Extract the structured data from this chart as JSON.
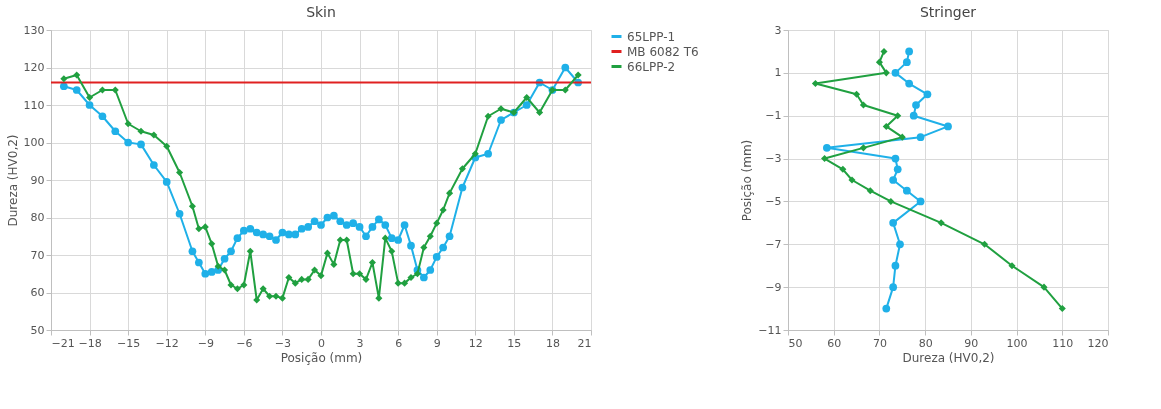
{
  "chart_data": [
    {
      "type": "line",
      "title": "Skin",
      "xlabel": "Posição (mm)",
      "ylabel": "Dureza (HV0,2)",
      "xlim": [
        -21,
        21
      ],
      "xticks": [
        -21,
        -18,
        -15,
        -12,
        -9,
        -6,
        -3,
        0,
        3,
        6,
        9,
        12,
        15,
        18,
        21
      ],
      "ylim": [
        50,
        130
      ],
      "yticks": [
        50,
        60,
        70,
        80,
        90,
        100,
        110,
        120,
        130
      ],
      "grid": true,
      "legend": "right",
      "line_style": "solid",
      "series": [
        {
          "name": "65LPP-1",
          "color": "#1fb0e8",
          "marker": "circle",
          "x": [
            -20,
            -19,
            -18,
            -17,
            -16,
            -15,
            -14,
            -13,
            -12,
            -11,
            -10,
            -9.5,
            -9,
            -8.5,
            -8,
            -7.5,
            -7,
            -6.5,
            -6,
            -5.5,
            -5,
            -4.5,
            -4,
            -3.5,
            -3,
            -2.5,
            -2,
            -1.5,
            -1,
            -0.5,
            0,
            0.5,
            1,
            1.5,
            2,
            2.5,
            3,
            3.5,
            4,
            4.5,
            5,
            5.5,
            6,
            6.5,
            7,
            7.5,
            8,
            8.5,
            9,
            9.5,
            10,
            11,
            12,
            13,
            14,
            15,
            16,
            17,
            18,
            19,
            20
          ],
          "values": [
            115,
            114,
            110,
            107,
            103,
            100,
            99.5,
            94,
            89.5,
            81,
            71,
            68,
            65,
            65.5,
            66,
            69,
            71,
            74.5,
            76.5,
            77,
            76,
            75.5,
            75,
            74,
            76,
            75.5,
            75.5,
            77,
            77.5,
            79,
            78,
            80,
            80.5,
            79,
            78,
            78.5,
            77.5,
            75,
            77.5,
            79.5,
            78,
            74.5,
            74,
            78,
            72.5,
            66,
            64,
            66,
            69.5,
            72,
            75,
            88,
            96,
            97,
            106,
            108,
            110,
            116,
            114,
            120,
            116
          ]
        },
        {
          "name": "MB 6082 T6",
          "color": "#e02020",
          "marker": "none",
          "x": [
            -21,
            21
          ],
          "values": [
            116,
            116
          ]
        },
        {
          "name": "66LPP-2",
          "color": "#20a040",
          "marker": "diamond",
          "x": [
            -20,
            -19,
            -18,
            -17,
            -16,
            -15,
            -14,
            -13,
            -12,
            -11,
            -10,
            -9.5,
            -9,
            -8.5,
            -8,
            -7.5,
            -7,
            -6.5,
            -6,
            -5.5,
            -5,
            -4.5,
            -4,
            -3.5,
            -3,
            -2.5,
            -2,
            -1.5,
            -1,
            -0.5,
            0,
            0.5,
            1,
            1.5,
            2,
            2.5,
            3,
            3.5,
            4,
            4.5,
            5,
            5.5,
            6,
            6.5,
            7,
            7.5,
            8,
            8.5,
            9,
            9.5,
            10,
            11,
            12,
            13,
            14,
            15,
            16,
            17,
            18,
            19,
            20
          ],
          "values": [
            117,
            118,
            112,
            114,
            114,
            105,
            103,
            102,
            99,
            92,
            83,
            77,
            77.5,
            73,
            67,
            66,
            62,
            61,
            62,
            71,
            58,
            61,
            59,
            59,
            58.5,
            64,
            62.5,
            63.5,
            63.5,
            66,
            64.5,
            70.5,
            67.5,
            74,
            74,
            65,
            65,
            63.5,
            68,
            58.5,
            74.5,
            71,
            62.5,
            62.5,
            64,
            65,
            72,
            75,
            78.5,
            82,
            86.5,
            93,
            97,
            107,
            109,
            108,
            112,
            108,
            114,
            114,
            118
          ]
        }
      ]
    },
    {
      "type": "line",
      "title": "Stringer",
      "xlabel": "Dureza (HV0,2)",
      "ylabel": "Posição (mm)",
      "xlim": [
        50,
        120
      ],
      "xticks": [
        50,
        60,
        70,
        80,
        90,
        100,
        110,
        120
      ],
      "ylim": [
        -11,
        3
      ],
      "yticks": [
        -11,
        -9,
        -7,
        -5,
        -3,
        -1,
        1,
        3
      ],
      "grid": true,
      "line_style": "solid",
      "series": [
        {
          "color": "#1fb0e8",
          "marker": "circle",
          "x": [
            76.5,
            76,
            73.5,
            76.5,
            80.5,
            78,
            77.5,
            85,
            79,
            58.5,
            73.5,
            74,
            73,
            76,
            79,
            73,
            74.5,
            73.5,
            73,
            71.5
          ],
          "values": [
            2,
            1.5,
            1,
            0.5,
            0,
            -0.5,
            -1,
            -1.5,
            -2,
            -2.5,
            -3,
            -3.5,
            -4,
            -4.5,
            -5,
            -6,
            -7,
            -8,
            -9,
            -10
          ]
        },
        {
          "color": "#20a040",
          "marker": "diamond",
          "x": [
            71,
            70,
            71.5,
            56,
            65,
            66.5,
            74,
            71.5,
            75,
            66.5,
            58,
            62,
            64,
            68,
            72.5,
            83.5,
            93,
            99,
            106,
            110
          ],
          "values": [
            2,
            1.5,
            1,
            0.5,
            0,
            -0.5,
            -1,
            -1.5,
            -2,
            -2.5,
            -3,
            -3.5,
            -4,
            -4.5,
            -5,
            -6,
            -7,
            -8,
            -9,
            -10
          ]
        }
      ]
    }
  ]
}
